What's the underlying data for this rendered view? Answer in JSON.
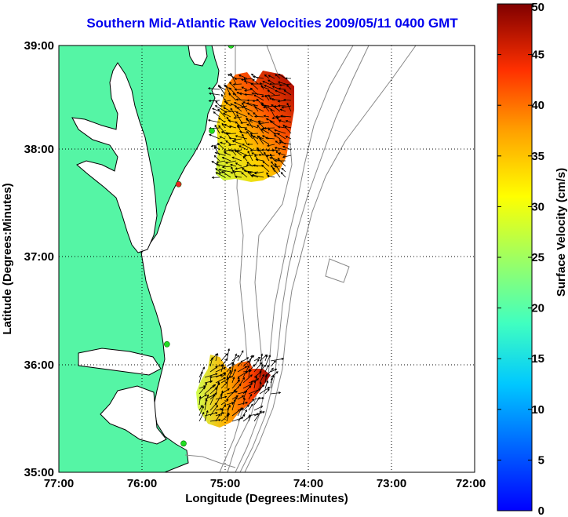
{
  "title": "Southern Mid-Atlantic Raw Velocities 2009/05/11 0400 GMT",
  "x_axis": {
    "label": "Longitude (Degrees:Minutes)",
    "ticks": [
      "77:00",
      "76:00",
      "75:00",
      "74:00",
      "73:00",
      "72:00"
    ],
    "values": [
      -77,
      -76,
      -75,
      -74,
      -73,
      -72
    ]
  },
  "y_axis": {
    "label": "Latitude (Degrees:Minutes)",
    "ticks": [
      "39:00",
      "38:00",
      "37:00",
      "36:00",
      "35:00"
    ],
    "values": [
      39,
      38,
      37,
      36,
      35
    ]
  },
  "colorbar": {
    "label": "Surface Velocity (cm/s)",
    "ticks": [
      "50",
      "45",
      "40",
      "35",
      "30",
      "25",
      "20",
      "15",
      "10",
      "5",
      "0"
    ],
    "min": 0,
    "max": 50
  },
  "colors": {
    "land": "#55f5a5",
    "coastline": "#000000",
    "bathymetry": "#888888",
    "grid": "#000000",
    "title": "#0000ee",
    "site_active": "#22dd22",
    "site_inactive": "#ee2222"
  },
  "extent": {
    "lon": [
      -77,
      -72
    ],
    "lat": [
      35,
      39
    ]
  },
  "sites": [
    {
      "status": "active",
      "lon": -74.93,
      "lat": 39.0
    },
    {
      "status": "active",
      "lon": -75.16,
      "lat": 38.2
    },
    {
      "status": "inactive",
      "lon": -75.56,
      "lat": 37.7
    },
    {
      "status": "active",
      "lon": -75.7,
      "lat": 36.2
    },
    {
      "status": "active",
      "lon": -75.5,
      "lat": 35.27
    }
  ]
}
